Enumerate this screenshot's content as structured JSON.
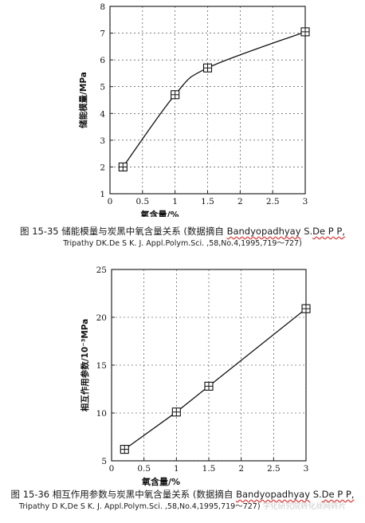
{
  "chart_data": [
    {
      "type": "line",
      "xlabel": "氧含量/%",
      "ylabel": "储能模量/MPa",
      "xlim": [
        0,
        3
      ],
      "ylim": [
        1,
        8
      ],
      "x_ticks": [
        "0",
        "0.5",
        "1",
        "1.5",
        "2",
        "2.5",
        "3"
      ],
      "y_ticks": [
        "1",
        "2",
        "3",
        "4",
        "5",
        "6",
        "7",
        "8"
      ],
      "marker": "boxed-cross",
      "series": [
        {
          "x": [
            0.2,
            1.0,
            1.5,
            3.0
          ],
          "y": [
            2.0,
            4.7,
            5.7,
            7.05
          ]
        }
      ]
    },
    {
      "type": "line",
      "xlabel": "氧含量/%",
      "ylabel": "相互作用参数/10⁻³MPa",
      "xlim": [
        0,
        3
      ],
      "ylim": [
        5,
        25
      ],
      "x_ticks": [
        "0",
        "0.5",
        "1",
        "1.5",
        "2",
        "2.5",
        "3"
      ],
      "y_ticks": [
        "5",
        "10",
        "15",
        "20",
        "25"
      ],
      "marker": "boxed-cross",
      "series": [
        {
          "x": [
            0.2,
            1.0,
            1.5,
            3.0
          ],
          "y": [
            6.2,
            10.1,
            12.8,
            20.9
          ]
        }
      ]
    }
  ],
  "captions": [
    {
      "prefix": "图 15-35 储能模量与炭黑中氧含量关系 (数据摘自 ",
      "author": "Bandyopadhyay",
      "mid": " S.",
      "author2": "De P P,",
      "line2": "Tripathy DK.De S K. J. Appl.Polym.Sci. ,58,No.4,1995,719～727)"
    },
    {
      "prefix": "图 15-36 相互作用参数与炭黑中氧含量关系 (数据摘自 ",
      "author": "Bandyopadhyay",
      "mid": " S.",
      "author2": "De P P,",
      "line2": "Tripathy D K,De S K. J. Appl.Polym.Sci. ,58,No.4,1995,719～727)",
      "watermark": "学化研究院转化丝网转片"
    }
  ]
}
